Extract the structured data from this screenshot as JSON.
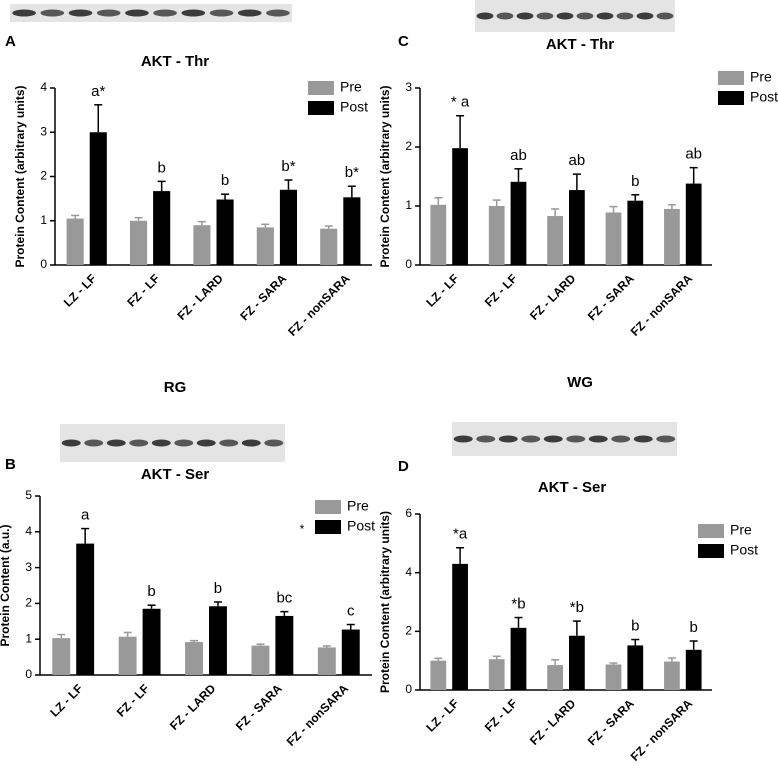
{
  "chart_data": [
    {
      "type": "bar",
      "panel": "A",
      "title": "AKT - Thr",
      "ylabel": "Protein Content (arbitrary units)",
      "categories": [
        "LZ - LF",
        "FZ - LF",
        "FZ - LARD",
        "FZ - SARA",
        "FZ - nonSARA"
      ],
      "series": [
        {
          "name": "Pre",
          "color": "#999999",
          "values": [
            1.05,
            1.0,
            0.9,
            0.85,
            0.82
          ],
          "errors": [
            0.07,
            0.07,
            0.08,
            0.07,
            0.06
          ]
        },
        {
          "name": "Post",
          "color": "#000000",
          "values": [
            3.0,
            1.67,
            1.48,
            1.7,
            1.53
          ],
          "errors": [
            0.62,
            0.22,
            0.12,
            0.22,
            0.25
          ]
        }
      ],
      "annotations": [
        "a*",
        "b",
        "b",
        "b*",
        "b*"
      ],
      "ylim": [
        0,
        4
      ],
      "yticks": [
        0,
        1,
        2,
        3,
        4
      ]
    },
    {
      "type": "bar",
      "panel": "B",
      "group_title": "RG",
      "title": "AKT - Ser",
      "ylabel": "Protein Content (a.u.)",
      "categories": [
        "LZ - LF",
        "FZ - LF",
        "FZ - LARD",
        "FZ - SARA",
        "FZ - nonSARA"
      ],
      "series": [
        {
          "name": "Pre",
          "color": "#999999",
          "values": [
            1.03,
            1.07,
            0.92,
            0.82,
            0.77
          ],
          "errors": [
            0.1,
            0.12,
            0.04,
            0.04,
            0.04
          ]
        },
        {
          "name": "Post",
          "color": "#000000",
          "values": [
            3.67,
            1.85,
            1.92,
            1.65,
            1.27
          ],
          "errors": [
            0.42,
            0.1,
            0.12,
            0.12,
            0.14
          ]
        }
      ],
      "annotations": [
        "a",
        "b",
        "b",
        "bc",
        "c"
      ],
      "legend_note": "*",
      "ylim": [
        0,
        5
      ],
      "yticks": [
        0,
        1,
        2,
        3,
        4,
        5
      ]
    },
    {
      "type": "bar",
      "panel": "C",
      "title": "AKT - Thr",
      "ylabel": "Protein Content (arbitrary units)",
      "categories": [
        "LZ - LF",
        "FZ - LF",
        "FZ - LARD",
        "FZ - SARA",
        "FZ - nonSARA"
      ],
      "series": [
        {
          "name": "Pre",
          "color": "#999999",
          "values": [
            1.02,
            1.0,
            0.83,
            0.89,
            0.95
          ],
          "errors": [
            0.12,
            0.1,
            0.12,
            0.1,
            0.07
          ]
        },
        {
          "name": "Post",
          "color": "#000000",
          "values": [
            1.98,
            1.41,
            1.27,
            1.09,
            1.38
          ],
          "errors": [
            0.55,
            0.22,
            0.27,
            0.1,
            0.27
          ]
        }
      ],
      "annotations": [
        "* a",
        "ab",
        "ab",
        "b",
        "ab"
      ],
      "ylim": [
        0,
        3
      ],
      "yticks": [
        0,
        1,
        2,
        3
      ]
    },
    {
      "type": "bar",
      "panel": "D",
      "group_title": "WG",
      "title": "AKT - Ser",
      "ylabel": "Protein Content (arbitrary units)",
      "categories": [
        "LZ - LF",
        "FZ - LF",
        "FZ - LARD",
        "FZ - SARA",
        "FZ - nonSARA"
      ],
      "series": [
        {
          "name": "Pre",
          "color": "#999999",
          "values": [
            1.0,
            1.05,
            0.85,
            0.87,
            0.97
          ],
          "errors": [
            0.08,
            0.1,
            0.18,
            0.05,
            0.12
          ]
        },
        {
          "name": "Post",
          "color": "#000000",
          "values": [
            4.3,
            2.12,
            1.85,
            1.52,
            1.37
          ],
          "errors": [
            0.55,
            0.35,
            0.5,
            0.2,
            0.3
          ]
        }
      ],
      "annotations": [
        "*a",
        "*b",
        "*b",
        "b",
        "b"
      ],
      "ylim": [
        0,
        6
      ],
      "yticks": [
        0,
        2,
        4,
        6
      ]
    }
  ]
}
